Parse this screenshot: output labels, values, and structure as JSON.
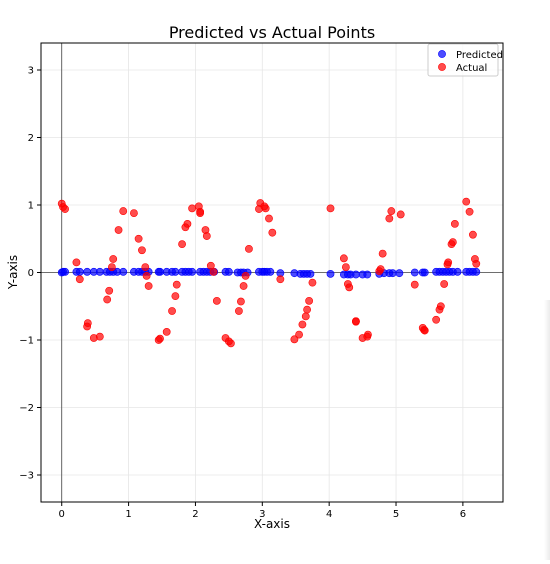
{
  "chart_data": {
    "type": "scatter",
    "title": "Predicted vs Actual Points",
    "xlabel": "X-axis",
    "ylabel": "Y-axis",
    "xlim": [
      -0.31,
      6.6
    ],
    "ylim": [
      -3.4,
      3.4
    ],
    "xticks": [
      0,
      1,
      2,
      3,
      4,
      5,
      6
    ],
    "yticks": [
      -3,
      -2,
      -1,
      0,
      1,
      2,
      3
    ],
    "grid": true,
    "legend": "top-right",
    "colors": {
      "predicted": "#0000ff",
      "actual": "#ff0000"
    },
    "series": [
      {
        "name": "Predicted",
        "points": [
          [
            0.0,
            0.0
          ],
          [
            0.02,
            0.01
          ],
          [
            0.05,
            0.01
          ],
          [
            0.22,
            0.01
          ],
          [
            0.27,
            0.01
          ],
          [
            0.38,
            0.01
          ],
          [
            0.48,
            0.01
          ],
          [
            0.57,
            0.01
          ],
          [
            0.67,
            0.01
          ],
          [
            0.72,
            0.01
          ],
          [
            0.77,
            0.01
          ],
          [
            0.83,
            0.01
          ],
          [
            0.92,
            0.01
          ],
          [
            1.08,
            0.01
          ],
          [
            1.15,
            0.01
          ],
          [
            1.2,
            0.01
          ],
          [
            1.25,
            0.01
          ],
          [
            1.3,
            0.01
          ],
          [
            1.45,
            0.01
          ],
          [
            1.47,
            0.01
          ],
          [
            1.57,
            0.01
          ],
          [
            1.65,
            0.01
          ],
          [
            1.7,
            0.01
          ],
          [
            1.8,
            0.01
          ],
          [
            1.85,
            0.01
          ],
          [
            1.9,
            0.01
          ],
          [
            1.95,
            0.01
          ],
          [
            2.07,
            0.01
          ],
          [
            2.12,
            0.01
          ],
          [
            2.17,
            0.01
          ],
          [
            2.22,
            0.01
          ],
          [
            2.28,
            0.01
          ],
          [
            2.45,
            0.01
          ],
          [
            2.5,
            0.01
          ],
          [
            2.63,
            0.0
          ],
          [
            2.68,
            0.0
          ],
          [
            2.72,
            0.0
          ],
          [
            2.78,
            0.0
          ],
          [
            2.95,
            0.01
          ],
          [
            3.0,
            0.01
          ],
          [
            3.03,
            0.01
          ],
          [
            3.07,
            0.01
          ],
          [
            3.12,
            0.01
          ],
          [
            3.27,
            -0.01
          ],
          [
            3.48,
            -0.01
          ],
          [
            3.57,
            -0.02
          ],
          [
            3.62,
            -0.02
          ],
          [
            3.67,
            -0.02
          ],
          [
            3.72,
            -0.02
          ],
          [
            4.02,
            -0.02
          ],
          [
            4.22,
            -0.03
          ],
          [
            4.28,
            -0.03
          ],
          [
            4.32,
            -0.03
          ],
          [
            4.4,
            -0.03
          ],
          [
            4.5,
            -0.03
          ],
          [
            4.57,
            -0.03
          ],
          [
            4.75,
            -0.02
          ],
          [
            4.82,
            -0.01
          ],
          [
            4.9,
            -0.01
          ],
          [
            4.95,
            -0.01
          ],
          [
            5.05,
            -0.01
          ],
          [
            5.28,
            0.0
          ],
          [
            5.4,
            0.0
          ],
          [
            5.43,
            0.0
          ],
          [
            5.6,
            0.01
          ],
          [
            5.65,
            0.01
          ],
          [
            5.7,
            0.01
          ],
          [
            5.75,
            0.01
          ],
          [
            5.8,
            0.01
          ],
          [
            5.85,
            0.01
          ],
          [
            5.92,
            0.01
          ],
          [
            6.05,
            0.01
          ],
          [
            6.1,
            0.01
          ],
          [
            6.15,
            0.01
          ],
          [
            6.2,
            0.01
          ]
        ]
      },
      {
        "name": "Actual",
        "points": [
          [
            0.0,
            1.02
          ],
          [
            0.02,
            0.97
          ],
          [
            0.05,
            0.94
          ],
          [
            0.22,
            0.15
          ],
          [
            0.27,
            -0.1
          ],
          [
            0.38,
            -0.8
          ],
          [
            0.39,
            -0.75
          ],
          [
            0.48,
            -0.97
          ],
          [
            0.57,
            -0.95
          ],
          [
            0.68,
            -0.4
          ],
          [
            0.71,
            -0.27
          ],
          [
            0.75,
            0.08
          ],
          [
            0.77,
            0.2
          ],
          [
            0.85,
            0.63
          ],
          [
            0.92,
            0.91
          ],
          [
            1.08,
            0.88
          ],
          [
            1.15,
            0.5
          ],
          [
            1.2,
            0.33
          ],
          [
            1.25,
            0.08
          ],
          [
            1.27,
            -0.05
          ],
          [
            1.3,
            -0.2
          ],
          [
            1.45,
            -1.0
          ],
          [
            1.47,
            -0.98
          ],
          [
            1.57,
            -0.88
          ],
          [
            1.65,
            -0.57
          ],
          [
            1.7,
            -0.35
          ],
          [
            1.72,
            -0.18
          ],
          [
            1.8,
            0.42
          ],
          [
            1.85,
            0.67
          ],
          [
            1.88,
            0.72
          ],
          [
            1.95,
            0.95
          ],
          [
            2.05,
            0.98
          ],
          [
            2.07,
            0.9
          ],
          [
            2.07,
            0.88
          ],
          [
            2.15,
            0.63
          ],
          [
            2.17,
            0.54
          ],
          [
            2.23,
            0.1
          ],
          [
            2.27,
            0.01
          ],
          [
            2.32,
            -0.42
          ],
          [
            2.45,
            -0.97
          ],
          [
            2.5,
            -1.02
          ],
          [
            2.53,
            -1.05
          ],
          [
            2.65,
            -0.57
          ],
          [
            2.68,
            -0.43
          ],
          [
            2.72,
            -0.2
          ],
          [
            2.75,
            -0.05
          ],
          [
            2.8,
            0.35
          ],
          [
            2.95,
            0.94
          ],
          [
            2.97,
            1.03
          ],
          [
            3.03,
            0.98
          ],
          [
            3.05,
            0.95
          ],
          [
            3.1,
            0.8
          ],
          [
            3.15,
            0.59
          ],
          [
            3.27,
            -0.1
          ],
          [
            3.48,
            -0.99
          ],
          [
            3.55,
            -0.92
          ],
          [
            3.6,
            -0.77
          ],
          [
            3.65,
            -0.65
          ],
          [
            3.67,
            -0.55
          ],
          [
            3.7,
            -0.42
          ],
          [
            3.75,
            -0.15
          ],
          [
            4.02,
            0.95
          ],
          [
            4.22,
            0.21
          ],
          [
            4.25,
            0.08
          ],
          [
            4.28,
            -0.17
          ],
          [
            4.3,
            -0.22
          ],
          [
            4.4,
            -0.73
          ],
          [
            4.4,
            -0.72
          ],
          [
            4.5,
            -0.97
          ],
          [
            4.57,
            -0.95
          ],
          [
            4.58,
            -0.92
          ],
          [
            4.75,
            0.02
          ],
          [
            4.77,
            0.05
          ],
          [
            4.8,
            0.28
          ],
          [
            4.9,
            0.8
          ],
          [
            4.93,
            0.91
          ],
          [
            5.07,
            0.86
          ],
          [
            5.28,
            -0.18
          ],
          [
            5.4,
            -0.82
          ],
          [
            5.42,
            -0.85
          ],
          [
            5.43,
            -0.86
          ],
          [
            5.6,
            -0.7
          ],
          [
            5.65,
            -0.55
          ],
          [
            5.67,
            -0.5
          ],
          [
            5.72,
            -0.17
          ],
          [
            5.77,
            0.12
          ],
          [
            5.78,
            0.15
          ],
          [
            5.83,
            0.42
          ],
          [
            5.85,
            0.45
          ],
          [
            5.88,
            0.72
          ],
          [
            6.05,
            1.05
          ],
          [
            6.1,
            0.9
          ],
          [
            6.15,
            0.56
          ],
          [
            6.18,
            0.2
          ],
          [
            6.2,
            0.13
          ]
        ]
      }
    ]
  }
}
